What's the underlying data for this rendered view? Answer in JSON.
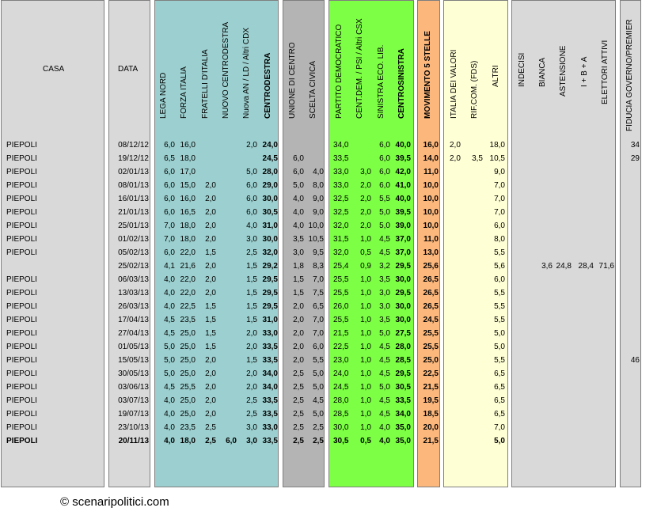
{
  "headers": {
    "casa": "CASA",
    "data": "DATA",
    "lega_nord": "LEGA NORD",
    "forza_italia": "FORZA ITALIA",
    "fratelli": "FRATELLI D'ITALIA",
    "nuovo_cd": "NUOVO CENTRODESTRA",
    "nuova_an": "Nuova AN / LD / Altri CDX",
    "centrodestra": "CENTRODESTRA",
    "udc": "UNIONE DI CENTRO",
    "scelta_civica": "SCELTA CIVICA",
    "pd": "PARTITO DEMOCRATICO",
    "cent_dem": "CENT.DEM. / PSI / Altri CSX",
    "sel": "SINISTRA ECO. LIB.",
    "centrosinistra": "CENTROSINISTRA",
    "m5s": "MOVIMENTO 5 STELLE",
    "idv": "ITALIA DEI VALORI",
    "rif_com": "RIF.COM. (FDS)",
    "altri": "ALTRI",
    "indecisi": "INDECISI",
    "bianca": "BIANCA",
    "astensione": "ASTENSIONE",
    "ibia": "I + B + A",
    "elettori_attivi": "ELETTORI ATTIVI",
    "fiducia": "FIDUCIA GOVERNO/PREMIER"
  },
  "colors": {
    "grey": "#d9d9d9",
    "teal": "#9ccfcf",
    "darkgrey": "#b4b4b4",
    "green": "#7cff44",
    "orange": "#fcb77c",
    "yellow": "#ffffd6",
    "border": "#7f7f7f"
  },
  "rows": [
    {
      "casa": "PIEPOLI",
      "data": "08/12/12",
      "ln": "6,0",
      "fi": "16,0",
      "fdi": "",
      "ncd": "",
      "nan": "2,0",
      "cdx": "24,0",
      "udc": "",
      "sc": "",
      "pd": "34,0",
      "cdm": "",
      "sel": "6,0",
      "csx": "40,0",
      "m5s": "16,0",
      "idv": "2,0",
      "rc": "",
      "altri": "18,0",
      "ind": "",
      "bia": "",
      "ast": "",
      "iba": "",
      "ea": "",
      "fid": "34",
      "bold": false
    },
    {
      "casa": "PIEPOLI",
      "data": "19/12/12",
      "ln": "6,5",
      "fi": "18,0",
      "fdi": "",
      "ncd": "",
      "nan": "",
      "cdx": "24,5",
      "udc": "6,0",
      "sc": "",
      "pd": "33,5",
      "cdm": "",
      "sel": "6,0",
      "csx": "39,5",
      "m5s": "14,0",
      "idv": "2,0",
      "rc": "3,5",
      "altri": "10,5",
      "ind": "",
      "bia": "",
      "ast": "",
      "iba": "",
      "ea": "",
      "fid": "29",
      "bold": false
    },
    {
      "casa": "PIEPOLI",
      "data": "02/01/13",
      "ln": "6,0",
      "fi": "17,0",
      "fdi": "",
      "ncd": "",
      "nan": "5,0",
      "cdx": "28,0",
      "udc": "6,0",
      "sc": "4,0",
      "pd": "33,0",
      "cdm": "3,0",
      "sel": "6,0",
      "csx": "42,0",
      "m5s": "11,0",
      "idv": "",
      "rc": "",
      "altri": "9,0",
      "ind": "",
      "bia": "",
      "ast": "",
      "iba": "",
      "ea": "",
      "fid": "",
      "bold": false
    },
    {
      "casa": "PIEPOLI",
      "data": "08/01/13",
      "ln": "6,0",
      "fi": "15,0",
      "fdi": "2,0",
      "ncd": "",
      "nan": "6,0",
      "cdx": "29,0",
      "udc": "5,0",
      "sc": "8,0",
      "pd": "33,0",
      "cdm": "2,0",
      "sel": "6,0",
      "csx": "41,0",
      "m5s": "10,0",
      "idv": "",
      "rc": "",
      "altri": "7,0",
      "ind": "",
      "bia": "",
      "ast": "",
      "iba": "",
      "ea": "",
      "fid": "",
      "bold": false
    },
    {
      "casa": "PIEPOLI",
      "data": "16/01/13",
      "ln": "6,0",
      "fi": "16,0",
      "fdi": "2,0",
      "ncd": "",
      "nan": "6,0",
      "cdx": "30,0",
      "udc": "4,0",
      "sc": "9,0",
      "pd": "32,5",
      "cdm": "2,0",
      "sel": "5,5",
      "csx": "40,0",
      "m5s": "10,0",
      "idv": "",
      "rc": "",
      "altri": "7,0",
      "ind": "",
      "bia": "",
      "ast": "",
      "iba": "",
      "ea": "",
      "fid": "",
      "bold": false
    },
    {
      "casa": "PIEPOLI",
      "data": "21/01/13",
      "ln": "6,0",
      "fi": "16,5",
      "fdi": "2,0",
      "ncd": "",
      "nan": "6,0",
      "cdx": "30,5",
      "udc": "4,0",
      "sc": "9,0",
      "pd": "32,5",
      "cdm": "2,0",
      "sel": "5,0",
      "csx": "39,5",
      "m5s": "10,0",
      "idv": "",
      "rc": "",
      "altri": "7,0",
      "ind": "",
      "bia": "",
      "ast": "",
      "iba": "",
      "ea": "",
      "fid": "",
      "bold": false
    },
    {
      "casa": "PIEPOLI",
      "data": "25/01/13",
      "ln": "7,0",
      "fi": "18,0",
      "fdi": "2,0",
      "ncd": "",
      "nan": "4,0",
      "cdx": "31,0",
      "udc": "4,0",
      "sc": "10,0",
      "pd": "32,0",
      "cdm": "2,0",
      "sel": "5,0",
      "csx": "39,0",
      "m5s": "10,0",
      "idv": "",
      "rc": "",
      "altri": "6,0",
      "ind": "",
      "bia": "",
      "ast": "",
      "iba": "",
      "ea": "",
      "fid": "",
      "bold": false
    },
    {
      "casa": "PIEPOLI",
      "data": "01/02/13",
      "ln": "7,0",
      "fi": "18,0",
      "fdi": "2,0",
      "ncd": "",
      "nan": "3,0",
      "cdx": "30,0",
      "udc": "3,5",
      "sc": "10,5",
      "pd": "31,5",
      "cdm": "1,0",
      "sel": "4,5",
      "csx": "37,0",
      "m5s": "11,0",
      "idv": "",
      "rc": "",
      "altri": "8,0",
      "ind": "",
      "bia": "",
      "ast": "",
      "iba": "",
      "ea": "",
      "fid": "",
      "bold": false
    },
    {
      "casa": "PIEPOLI",
      "data": "05/02/13",
      "ln": "6,0",
      "fi": "22,0",
      "fdi": "1,5",
      "ncd": "",
      "nan": "2,5",
      "cdx": "32,0",
      "udc": "3,0",
      "sc": "9,5",
      "pd": "32,0",
      "cdm": "0,5",
      "sel": "4,5",
      "csx": "37,0",
      "m5s": "13,0",
      "idv": "",
      "rc": "",
      "altri": "5,5",
      "ind": "",
      "bia": "",
      "ast": "",
      "iba": "",
      "ea": "",
      "fid": "",
      "bold": false
    },
    {
      "casa": "",
      "data": "25/02/13",
      "ln": "4,1",
      "fi": "21,6",
      "fdi": "2,0",
      "ncd": "",
      "nan": "1,5",
      "cdx": "29,2",
      "udc": "1,8",
      "sc": "8,3",
      "pd": "25,4",
      "cdm": "0,9",
      "sel": "3,2",
      "csx": "29,5",
      "m5s": "25,6",
      "idv": "",
      "rc": "",
      "altri": "5,6",
      "ind": "",
      "bia": "3,6",
      "ast": "24,8",
      "iba": "28,4",
      "ea": "71,6",
      "fid": "",
      "bold": false
    },
    {
      "casa": "PIEPOLI",
      "data": "06/03/13",
      "ln": "4,0",
      "fi": "22,0",
      "fdi": "2,0",
      "ncd": "",
      "nan": "1,5",
      "cdx": "29,5",
      "udc": "1,5",
      "sc": "7,0",
      "pd": "25,5",
      "cdm": "1,0",
      "sel": "3,5",
      "csx": "30,0",
      "m5s": "26,5",
      "idv": "",
      "rc": "",
      "altri": "6,0",
      "ind": "",
      "bia": "",
      "ast": "",
      "iba": "",
      "ea": "",
      "fid": "",
      "bold": false
    },
    {
      "casa": "PIEPOLI",
      "data": "13/03/13",
      "ln": "4,0",
      "fi": "22,0",
      "fdi": "2,0",
      "ncd": "",
      "nan": "1,5",
      "cdx": "29,5",
      "udc": "1,5",
      "sc": "7,5",
      "pd": "25,5",
      "cdm": "1,0",
      "sel": "3,0",
      "csx": "29,5",
      "m5s": "26,5",
      "idv": "",
      "rc": "",
      "altri": "5,5",
      "ind": "",
      "bia": "",
      "ast": "",
      "iba": "",
      "ea": "",
      "fid": "",
      "bold": false
    },
    {
      "casa": "PIEPOLI",
      "data": "26/03/13",
      "ln": "4,0",
      "fi": "22,5",
      "fdi": "1,5",
      "ncd": "",
      "nan": "1,5",
      "cdx": "29,5",
      "udc": "2,0",
      "sc": "6,5",
      "pd": "26,0",
      "cdm": "1,0",
      "sel": "3,0",
      "csx": "30,0",
      "m5s": "26,5",
      "idv": "",
      "rc": "",
      "altri": "5,5",
      "ind": "",
      "bia": "",
      "ast": "",
      "iba": "",
      "ea": "",
      "fid": "",
      "bold": false
    },
    {
      "casa": "PIEPOLI",
      "data": "17/04/13",
      "ln": "4,5",
      "fi": "23,5",
      "fdi": "1,5",
      "ncd": "",
      "nan": "1,5",
      "cdx": "31,0",
      "udc": "2,0",
      "sc": "7,0",
      "pd": "25,5",
      "cdm": "1,0",
      "sel": "3,5",
      "csx": "30,0",
      "m5s": "24,5",
      "idv": "",
      "rc": "",
      "altri": "5,5",
      "ind": "",
      "bia": "",
      "ast": "",
      "iba": "",
      "ea": "",
      "fid": "",
      "bold": false
    },
    {
      "casa": "PIEPOLI",
      "data": "27/04/13",
      "ln": "4,5",
      "fi": "25,0",
      "fdi": "1,5",
      "ncd": "",
      "nan": "2,0",
      "cdx": "33,0",
      "udc": "2,0",
      "sc": "7,0",
      "pd": "21,5",
      "cdm": "1,0",
      "sel": "5,0",
      "csx": "27,5",
      "m5s": "25,5",
      "idv": "",
      "rc": "",
      "altri": "5,0",
      "ind": "",
      "bia": "",
      "ast": "",
      "iba": "",
      "ea": "",
      "fid": "",
      "bold": false
    },
    {
      "casa": "PIEPOLI",
      "data": "01/05/13",
      "ln": "5,0",
      "fi": "25,0",
      "fdi": "1,5",
      "ncd": "",
      "nan": "2,0",
      "cdx": "33,5",
      "udc": "2,0",
      "sc": "6,0",
      "pd": "22,5",
      "cdm": "1,0",
      "sel": "4,5",
      "csx": "28,0",
      "m5s": "25,5",
      "idv": "",
      "rc": "",
      "altri": "5,0",
      "ind": "",
      "bia": "",
      "ast": "",
      "iba": "",
      "ea": "",
      "fid": "",
      "bold": false
    },
    {
      "casa": "PIEPOLI",
      "data": "15/05/13",
      "ln": "5,0",
      "fi": "25,0",
      "fdi": "2,0",
      "ncd": "",
      "nan": "1,5",
      "cdx": "33,5",
      "udc": "2,0",
      "sc": "5,5",
      "pd": "23,0",
      "cdm": "1,0",
      "sel": "4,5",
      "csx": "28,5",
      "m5s": "25,0",
      "idv": "",
      "rc": "",
      "altri": "5,5",
      "ind": "",
      "bia": "",
      "ast": "",
      "iba": "",
      "ea": "",
      "fid": "46",
      "bold": false
    },
    {
      "casa": "PIEPOLI",
      "data": "30/05/13",
      "ln": "5,0",
      "fi": "25,0",
      "fdi": "2,0",
      "ncd": "",
      "nan": "2,0",
      "cdx": "34,0",
      "udc": "2,5",
      "sc": "5,0",
      "pd": "24,0",
      "cdm": "1,0",
      "sel": "4,5",
      "csx": "29,5",
      "m5s": "22,5",
      "idv": "",
      "rc": "",
      "altri": "6,5",
      "ind": "",
      "bia": "",
      "ast": "",
      "iba": "",
      "ea": "",
      "fid": "",
      "bold": false
    },
    {
      "casa": "PIEPOLI",
      "data": "03/06/13",
      "ln": "4,5",
      "fi": "25,5",
      "fdi": "2,0",
      "ncd": "",
      "nan": "2,0",
      "cdx": "34,0",
      "udc": "2,5",
      "sc": "5,0",
      "pd": "24,5",
      "cdm": "1,0",
      "sel": "5,0",
      "csx": "30,5",
      "m5s": "21,5",
      "idv": "",
      "rc": "",
      "altri": "6,5",
      "ind": "",
      "bia": "",
      "ast": "",
      "iba": "",
      "ea": "",
      "fid": "",
      "bold": false
    },
    {
      "casa": "PIEPOLI",
      "data": "03/07/13",
      "ln": "4,0",
      "fi": "25,0",
      "fdi": "2,0",
      "ncd": "",
      "nan": "2,5",
      "cdx": "33,5",
      "udc": "2,5",
      "sc": "4,5",
      "pd": "28,0",
      "cdm": "1,0",
      "sel": "4,5",
      "csx": "33,5",
      "m5s": "19,5",
      "idv": "",
      "rc": "",
      "altri": "6,5",
      "ind": "",
      "bia": "",
      "ast": "",
      "iba": "",
      "ea": "",
      "fid": "",
      "bold": false
    },
    {
      "casa": "PIEPOLI",
      "data": "19/07/13",
      "ln": "4,0",
      "fi": "25,0",
      "fdi": "2,0",
      "ncd": "",
      "nan": "2,5",
      "cdx": "33,5",
      "udc": "2,5",
      "sc": "5,0",
      "pd": "28,5",
      "cdm": "1,0",
      "sel": "4,5",
      "csx": "34,0",
      "m5s": "18,5",
      "idv": "",
      "rc": "",
      "altri": "6,5",
      "ind": "",
      "bia": "",
      "ast": "",
      "iba": "",
      "ea": "",
      "fid": "",
      "bold": false
    },
    {
      "casa": "PIEPOLI",
      "data": "23/10/13",
      "ln": "4,0",
      "fi": "23,5",
      "fdi": "2,5",
      "ncd": "",
      "nan": "3,0",
      "cdx": "33,0",
      "udc": "2,5",
      "sc": "2,5",
      "pd": "30,0",
      "cdm": "1,0",
      "sel": "4,0",
      "csx": "35,0",
      "m5s": "20,0",
      "idv": "",
      "rc": "",
      "altri": "7,0",
      "ind": "",
      "bia": "",
      "ast": "",
      "iba": "",
      "ea": "",
      "fid": "",
      "bold": false
    },
    {
      "casa": "PIEPOLI",
      "data": "20/11/13",
      "ln": "4,0",
      "fi": "18,0",
      "fdi": "2,5",
      "ncd": "6,0",
      "nan": "3,0",
      "cdx": "33,5",
      "udc": "2,5",
      "sc": "2,5",
      "pd": "30,5",
      "cdm": "0,5",
      "sel": "4,0",
      "csx": "35,0",
      "m5s": "21,5",
      "idv": "",
      "rc": "",
      "altri": "5,0",
      "ind": "",
      "bia": "",
      "ast": "",
      "iba": "",
      "ea": "",
      "fid": "",
      "bold": true
    }
  ],
  "footer": "© scenaripolitici.com"
}
